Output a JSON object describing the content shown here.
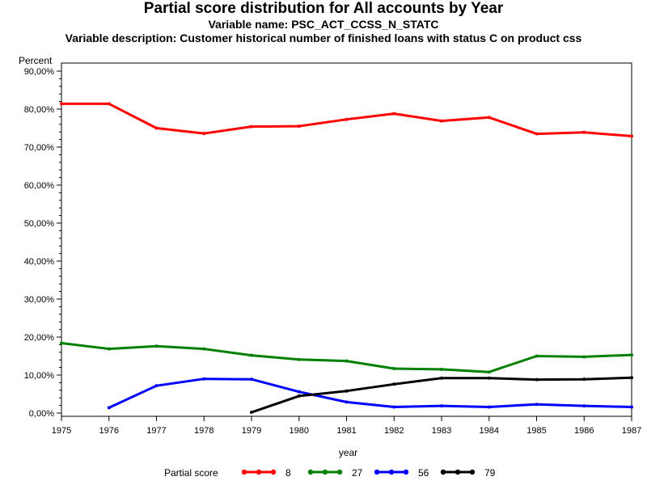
{
  "chart_data": {
    "type": "line",
    "title": "Partial score distribution for All accounts by Year",
    "subtitles": [
      "Variable name: PSC_ACT_CCSS_N_STATC",
      "Variable description: Customer historical number of finished loans with status C on product css"
    ],
    "xlabel": "year",
    "ylabel": "Percent",
    "x": [
      1975,
      1976,
      1977,
      1978,
      1979,
      1980,
      1981,
      1982,
      1983,
      1984,
      1985,
      1986,
      1987
    ],
    "xlim": [
      1975,
      1987
    ],
    "ylim": [
      0,
      90
    ],
    "yticks": [
      0,
      10,
      20,
      30,
      40,
      50,
      60,
      70,
      80,
      90
    ],
    "ytick_labels": [
      "0,00%",
      "10,00%",
      "20,00%",
      "30,00%",
      "40,00%",
      "50,00%",
      "60,00%",
      "70,00%",
      "80,00%",
      "90,00%"
    ],
    "xtick_labels": [
      "1975",
      "1976",
      "1977",
      "1978",
      "1979",
      "1980",
      "1981",
      "1982",
      "1983",
      "1984",
      "1985",
      "1986",
      "1987"
    ],
    "legend": {
      "title": "Partial score",
      "position": "bottom"
    },
    "grid": false,
    "series": [
      {
        "name": "8",
        "color": "#ff0000",
        "values": [
          81.4,
          81.4,
          75.0,
          73.6,
          75.4,
          75.5,
          77.3,
          78.8,
          76.9,
          77.8,
          73.5,
          73.9,
          72.9
        ]
      },
      {
        "name": "27",
        "color": "#008000",
        "values": [
          18.4,
          16.9,
          17.6,
          16.9,
          15.2,
          14.1,
          13.7,
          11.7,
          11.5,
          10.8,
          15.0,
          14.8,
          15.3
        ]
      },
      {
        "name": "56",
        "color": "#0000ff",
        "values": [
          null,
          1.4,
          7.2,
          9.0,
          8.9,
          5.6,
          2.9,
          1.6,
          1.9,
          1.6,
          2.3,
          1.9,
          1.6
        ]
      },
      {
        "name": "79",
        "color": "#000000",
        "values": [
          null,
          null,
          null,
          null,
          0.2,
          4.5,
          5.8,
          7.6,
          9.2,
          9.2,
          8.8,
          8.9,
          9.3
        ]
      }
    ]
  }
}
